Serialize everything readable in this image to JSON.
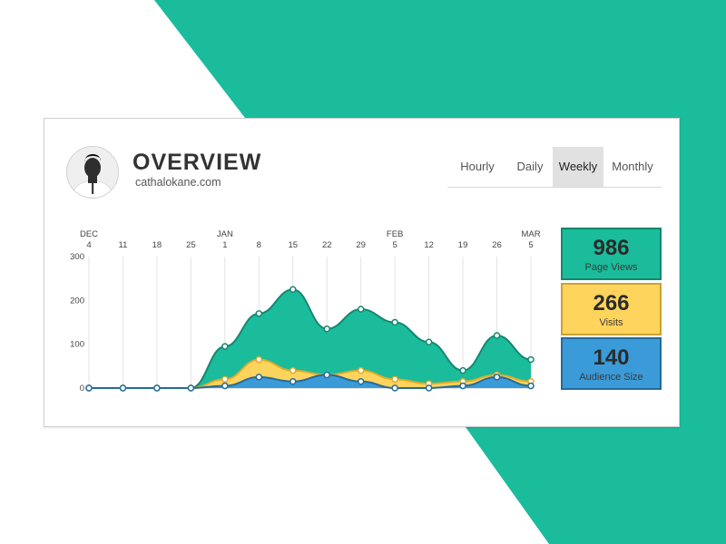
{
  "colors": {
    "teal": "#1abc9c",
    "teal_dark": "#15876f",
    "yellow": "#ffd45c",
    "yellow_dark": "#e0aa2c",
    "blue": "#3a9bd8",
    "blue_dark": "#246b99"
  },
  "header": {
    "title": "OVERVIEW",
    "subtitle": "cathalokane.com",
    "avatar_icon": "person-avatar-icon"
  },
  "tabs": [
    {
      "label": "Hourly",
      "selected": false
    },
    {
      "label": "Daily",
      "selected": false
    },
    {
      "label": "Weekly",
      "selected": true
    },
    {
      "label": "Monthly",
      "selected": false
    }
  ],
  "stats": [
    {
      "value": "986",
      "label": "Page Views",
      "color": "#1abc9c"
    },
    {
      "value": "266",
      "label": "Visits",
      "color": "#ffd45c"
    },
    {
      "value": "140",
      "label": "Audience Size",
      "color": "#3a9bd8"
    }
  ],
  "chart_data": {
    "type": "area",
    "month_labels": [
      {
        "label": "DEC",
        "index": 0
      },
      {
        "label": "JAN",
        "index": 4
      },
      {
        "label": "FEB",
        "index": 9
      },
      {
        "label": "MAR",
        "index": 13
      }
    ],
    "x": [
      "4",
      "11",
      "18",
      "25",
      "1",
      "8",
      "15",
      "22",
      "29",
      "5",
      "12",
      "19",
      "26",
      "5"
    ],
    "y_ticks": [
      0,
      100,
      200,
      300
    ],
    "ylim": [
      0,
      300
    ],
    "grid": "vertical",
    "series": [
      {
        "values": [
          0,
          0,
          0,
          0,
          95,
          170,
          225,
          135,
          180,
          150,
          105,
          40,
          120,
          65
        ],
        "color": "#1abc9c"
      },
      {
        "values": [
          0,
          0,
          0,
          0,
          20,
          65,
          40,
          30,
          40,
          20,
          10,
          15,
          30,
          15
        ],
        "color": "#ffd45c"
      },
      {
        "values": [
          0,
          0,
          0,
          0,
          5,
          25,
          15,
          30,
          15,
          0,
          0,
          5,
          25,
          5
        ],
        "color": "#3a9bd8"
      }
    ]
  }
}
